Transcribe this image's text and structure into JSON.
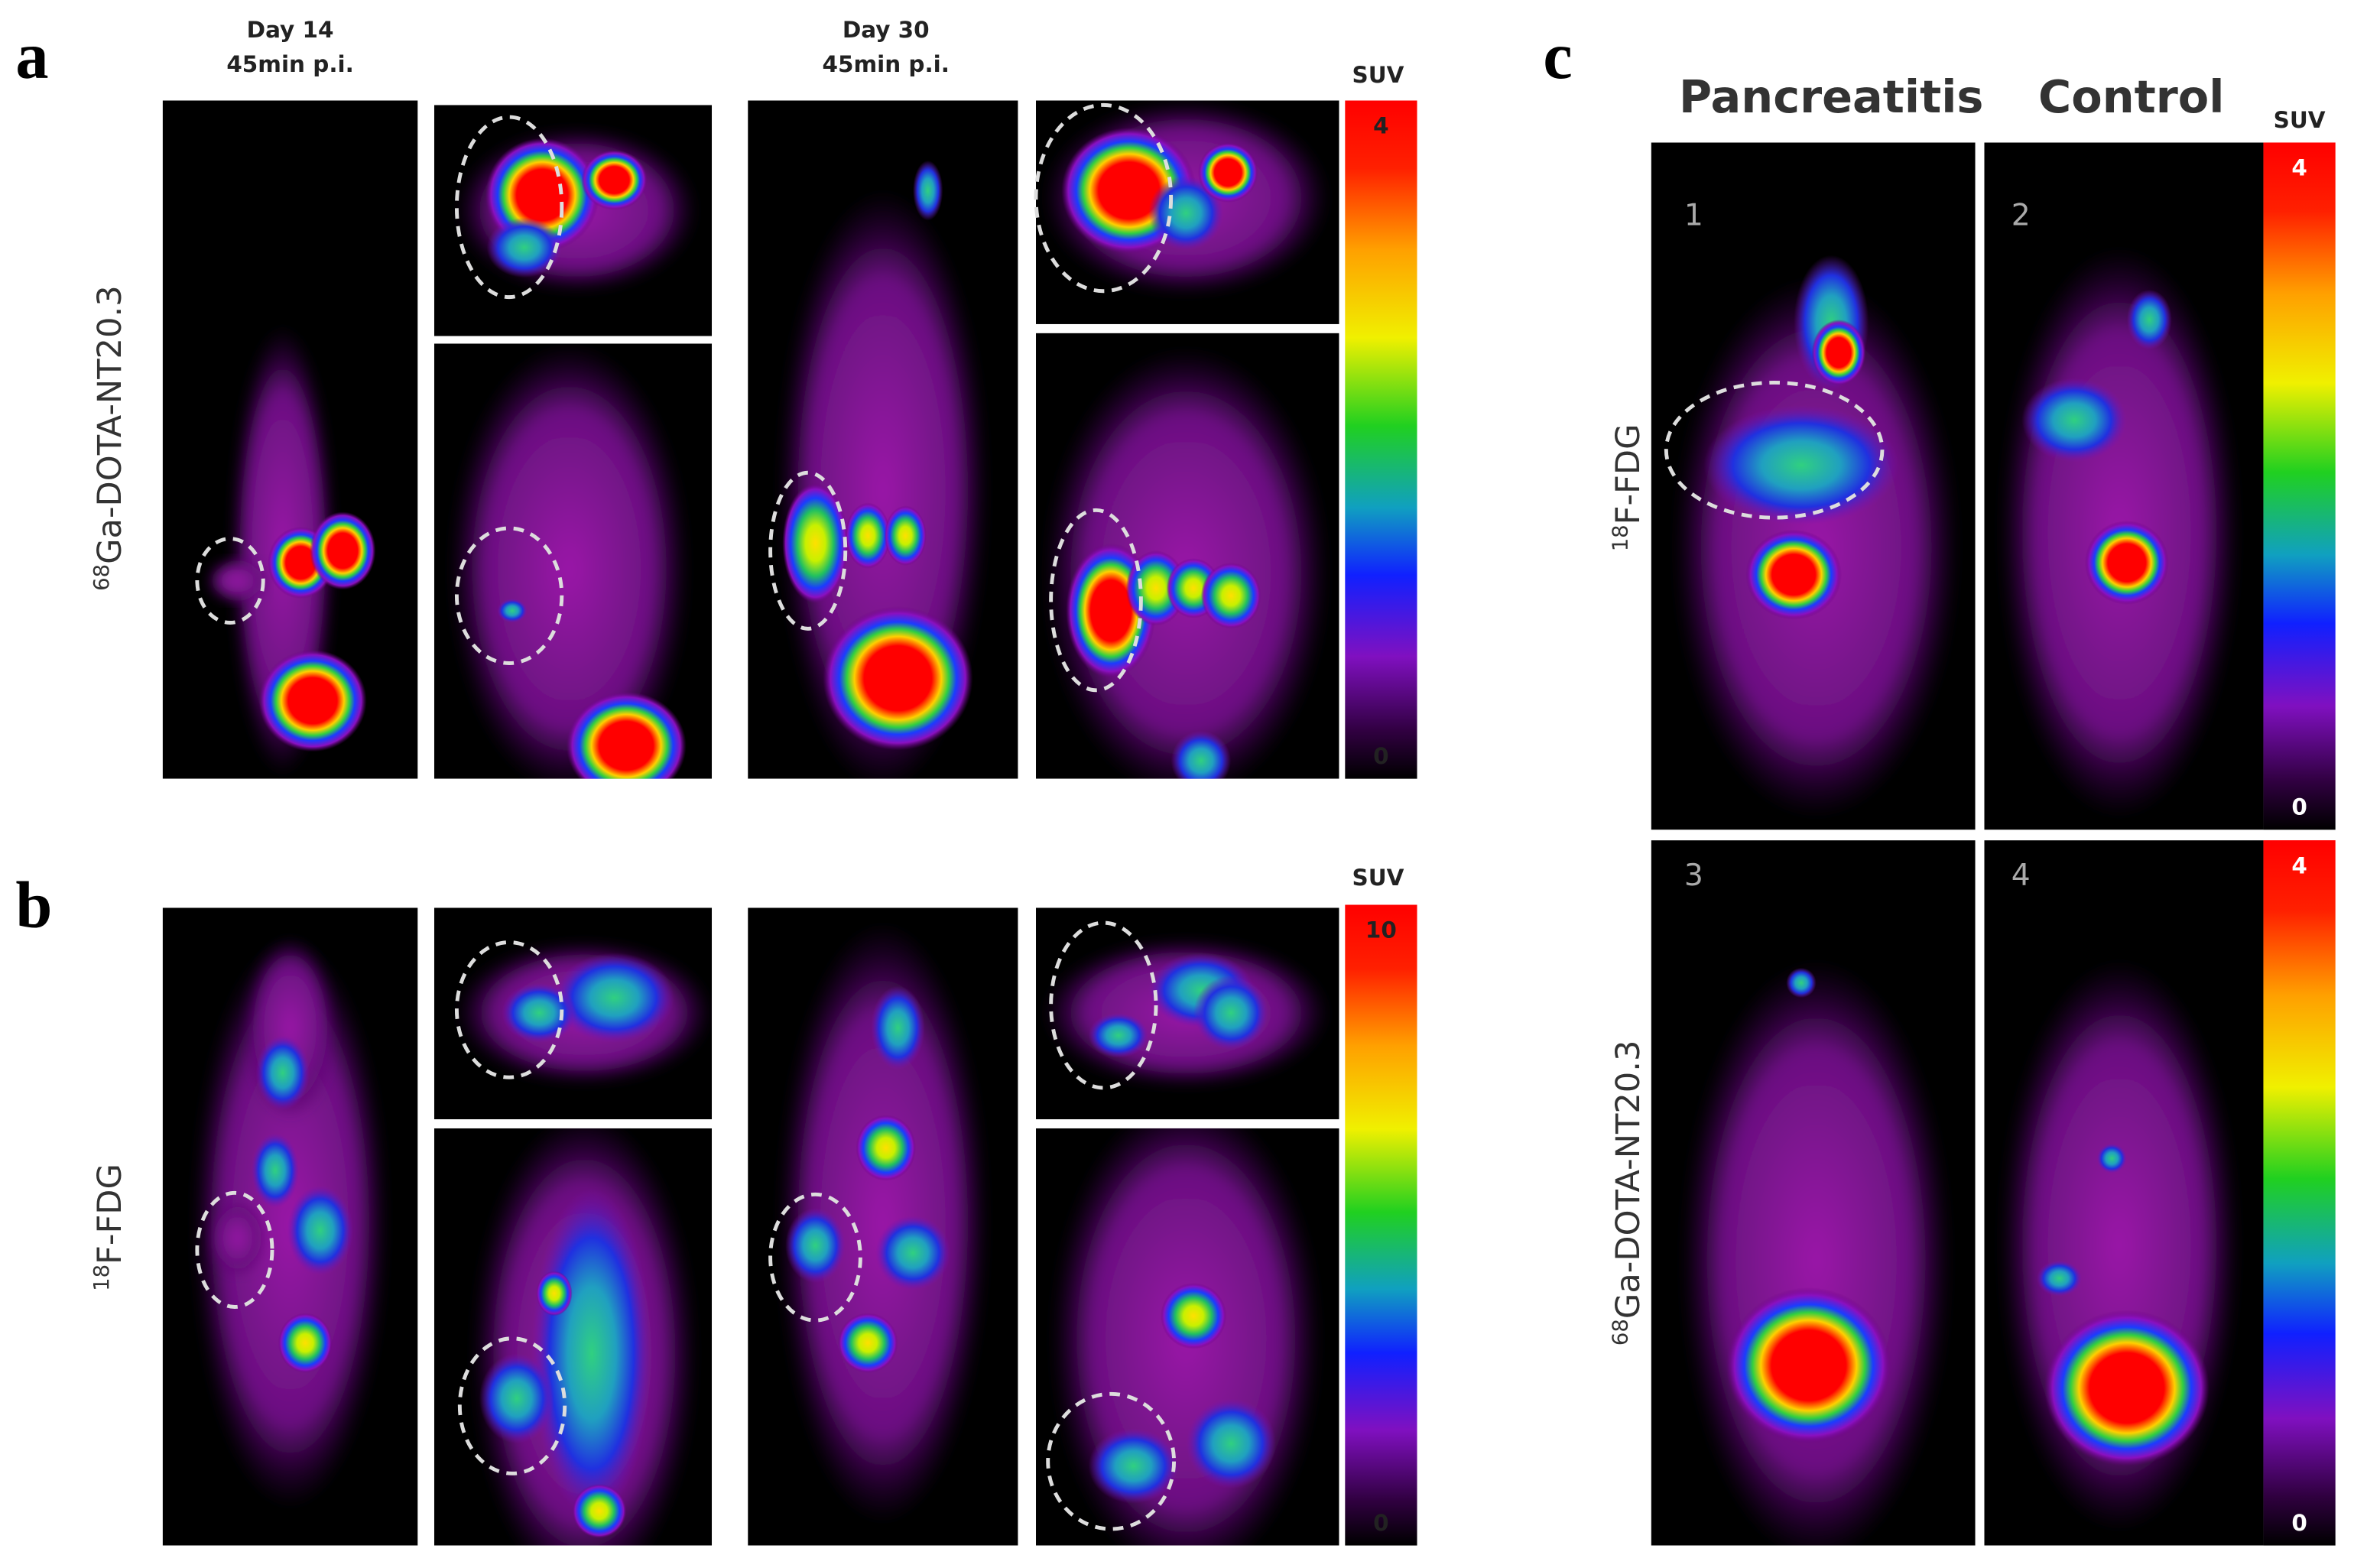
{
  "panel_a": {
    "label": "a",
    "columns": [
      {
        "day": "Day 14",
        "time": "45min p.i."
      },
      {
        "day": "Day 30",
        "time": "45min p.i."
      }
    ],
    "row_label": {
      "isotope": "68",
      "name": "Ga-DOTA-NT20.3"
    },
    "colorbar": {
      "title": "SUV",
      "max": 4,
      "min": 0
    }
  },
  "panel_b": {
    "label": "b",
    "row_label": {
      "isotope": "18",
      "name": "F-FDG"
    },
    "colorbar": {
      "title": "SUV",
      "max": 10,
      "min": 0
    }
  },
  "panel_c": {
    "label": "c",
    "columns": [
      "Pancreatitis",
      "Control"
    ],
    "colorbar_title": "SUV",
    "rows": [
      {
        "isotope": "18",
        "name": "F-FDG",
        "images": [
          1,
          2
        ],
        "colorbar": {
          "max": 4,
          "min": 0
        }
      },
      {
        "isotope": "68",
        "name": "Ga-DOTA-NT20.3",
        "images": [
          3,
          4
        ],
        "colorbar": {
          "max": 4,
          "min": 0
        }
      }
    ]
  }
}
